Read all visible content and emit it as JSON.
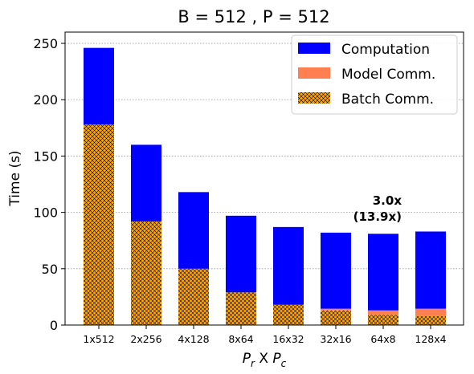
{
  "chart_data": {
    "type": "bar",
    "stacked": true,
    "title": "B = 512 ,  P = 512",
    "xlabel": {
      "main": "P",
      "r_sub": "r",
      "sep": " X ",
      "main2": "P",
      "c_sub": "c"
    },
    "ylabel": "Time (s)",
    "ylim": [
      0,
      260
    ],
    "yticks": [
      0,
      50,
      100,
      150,
      200,
      250
    ],
    "grid": "horizontal-dotted",
    "legend_position": "top-right",
    "categories": [
      "1x512",
      "2x256",
      "4x128",
      "8x64",
      "16x32",
      "32x16",
      "64x8",
      "128x4"
    ],
    "series": [
      {
        "name": "Batch Comm.",
        "color": "#FFA500",
        "pattern": "crosshatch",
        "values": [
          178,
          92,
          50,
          29,
          18,
          13,
          9,
          8
        ]
      },
      {
        "name": "Model Comm.",
        "color": "#FF7F50",
        "values": [
          0,
          0,
          0,
          0,
          0,
          1.5,
          4,
          6.5
        ]
      },
      {
        "name": "Computation",
        "color": "#0000FF",
        "values": [
          68,
          68,
          68,
          68,
          69,
          67.5,
          68,
          68.5
        ]
      }
    ],
    "legend_order": [
      "Computation",
      "Model Comm.",
      "Batch Comm."
    ],
    "annotation": {
      "line1": "3.0x",
      "line2": "(13.9x)",
      "near_category": "64x8"
    }
  }
}
